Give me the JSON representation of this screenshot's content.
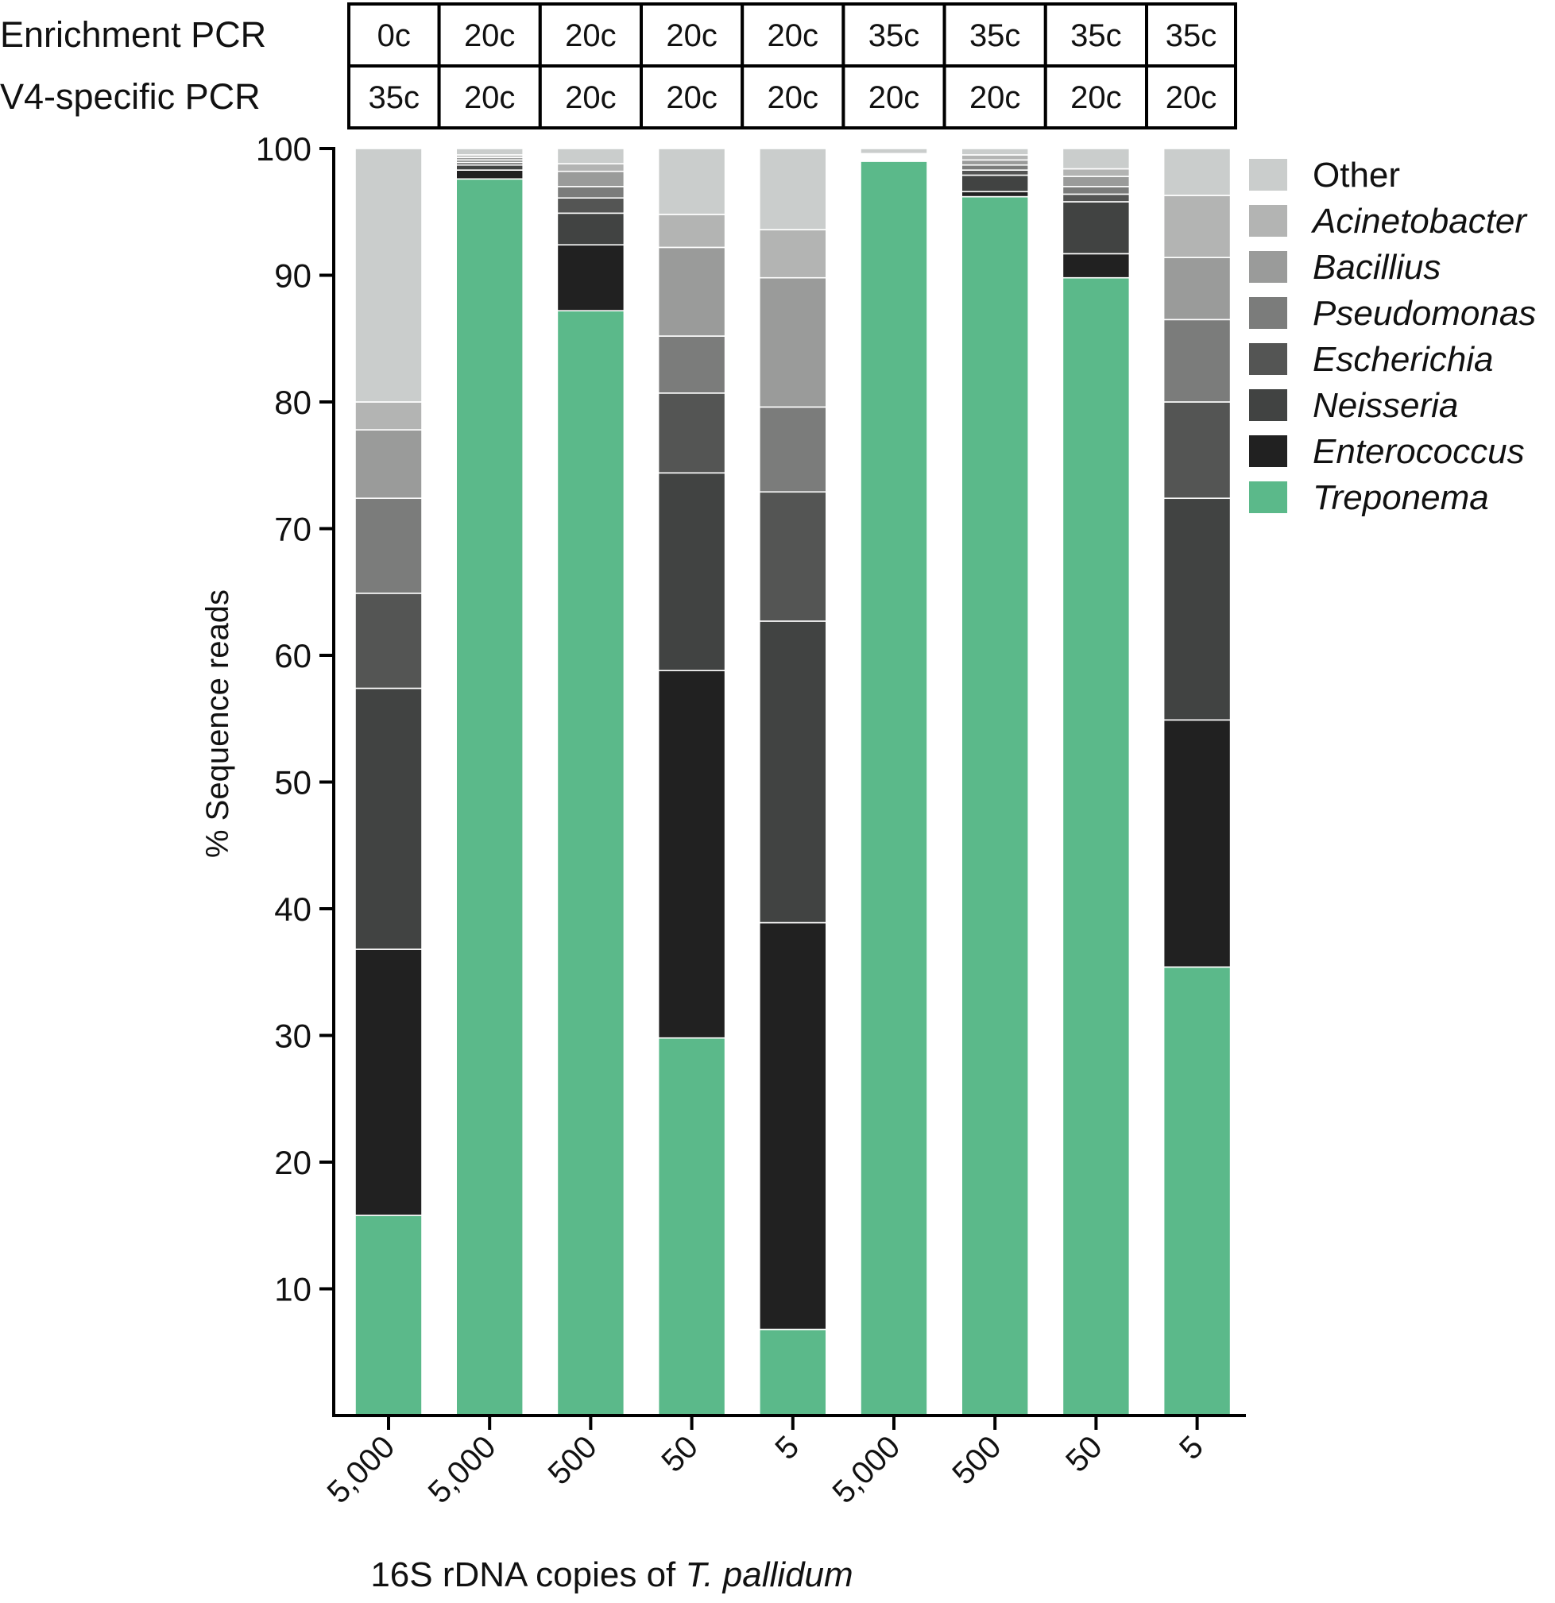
{
  "chart_data": {
    "type": "bar",
    "stacked": true,
    "categories": [
      "5,000",
      "5,000",
      "500",
      "50",
      "5",
      "5,000",
      "500",
      "50",
      "5"
    ],
    "xlabel_prefix": "16S rDNA copies of ",
    "xlabel_italic": "T. pallidum",
    "ylabel": "% Sequence reads",
    "ylim": [
      0,
      100
    ],
    "yticks": [
      10,
      20,
      30,
      40,
      50,
      60,
      70,
      80,
      90,
      100
    ],
    "legend_position": "right",
    "pcr_table": {
      "rows": [
        {
          "label": "Enrichment PCR",
          "values": [
            "0c",
            "20c",
            "20c",
            "20c",
            "20c",
            "35c",
            "35c",
            "35c",
            "35c"
          ]
        },
        {
          "label": "V4-specific PCR",
          "values": [
            "35c",
            "20c",
            "20c",
            "20c",
            "20c",
            "20c",
            "20c",
            "20c",
            "20c"
          ]
        }
      ]
    },
    "series": [
      {
        "name": "Treponema",
        "italic": true,
        "color": "#5bb98a",
        "values": [
          15.8,
          97.6,
          87.2,
          29.8,
          6.8,
          99.0,
          96.2,
          89.8,
          35.4
        ]
      },
      {
        "name": "Enterococcus",
        "italic": true,
        "color": "#212121",
        "values": [
          21.0,
          0.7,
          5.2,
          29.0,
          32.1,
          0.1,
          0.4,
          1.9,
          19.5
        ]
      },
      {
        "name": "Neisseria",
        "italic": true,
        "color": "#414342",
        "values": [
          20.6,
          0.4,
          2.5,
          15.6,
          23.8,
          0.1,
          1.3,
          4.1,
          17.5
        ]
      },
      {
        "name": "Escherichia",
        "italic": true,
        "color": "#545554",
        "values": [
          7.5,
          0.2,
          1.2,
          6.3,
          10.2,
          0.1,
          0.4,
          0.6,
          7.6
        ]
      },
      {
        "name": "Pseudomonas",
        "italic": true,
        "color": "#7b7c7b",
        "values": [
          7.5,
          0.2,
          0.9,
          4.5,
          6.7,
          0.1,
          0.4,
          0.6,
          6.5
        ]
      },
      {
        "name": "Bacillius",
        "italic": true,
        "color": "#9a9b9a",
        "values": [
          5.4,
          0.2,
          1.2,
          7.0,
          10.2,
          0.1,
          0.4,
          0.8,
          4.9
        ]
      },
      {
        "name": "Acinetobacter",
        "italic": true,
        "color": "#b3b4b3",
        "values": [
          2.2,
          0.2,
          0.6,
          2.6,
          3.8,
          0.1,
          0.4,
          0.6,
          4.9
        ]
      },
      {
        "name": "Other",
        "italic": false,
        "color": "#cacdcc",
        "values": [
          20.0,
          0.5,
          1.2,
          5.2,
          6.4,
          0.4,
          0.5,
          1.6,
          3.7
        ]
      }
    ]
  }
}
